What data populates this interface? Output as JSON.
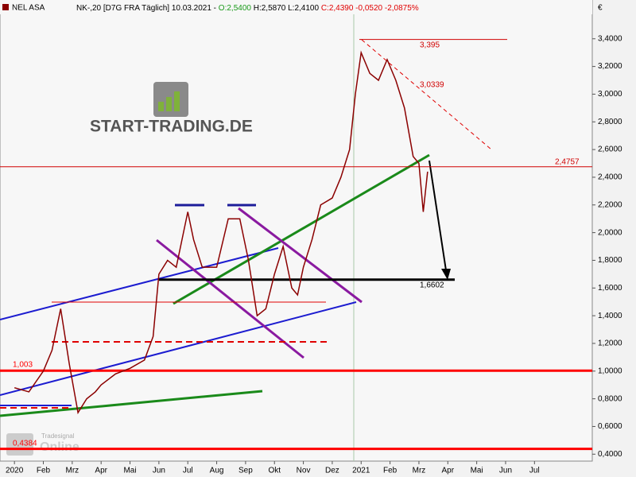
{
  "chart_data": {
    "type": "line",
    "header": {
      "symbol": "NEL ASA",
      "info": "NK-,20 [D7G FRA  Täglich] 10.03.2021 -",
      "open": "O:2,5400",
      "hl": "H:2,5870 L:2,4100",
      "close": "C:2,4390 -0,0520 -2,0875%"
    },
    "currency": "€",
    "watermark": "START-TRADING.DE",
    "watermark2": "Tradesignal",
    "watermark3": "Online",
    "x": [
      0,
      0.5,
      1.0,
      1.3,
      1.6,
      1.9,
      2.2,
      2.5,
      2.8,
      3.0,
      3.5,
      4.0,
      4.5,
      4.8,
      5.0,
      5.3,
      5.6,
      6.0,
      6.2,
      6.5,
      7.0,
      7.4,
      7.8,
      8.1,
      8.4,
      8.7,
      9.0,
      9.3,
      9.6,
      9.8,
      10.0,
      10.3,
      10.6,
      11.0,
      11.3,
      11.6,
      11.8,
      12.0,
      12.3,
      12.6,
      12.9,
      13.2,
      13.5,
      13.8,
      14.0,
      14.15,
      14.3
    ],
    "series": [
      {
        "name": "NEL ASA",
        "color": "#8b0000",
        "values": [
          0.88,
          0.85,
          1.0,
          1.15,
          1.45,
          1.05,
          0.7,
          0.8,
          0.85,
          0.9,
          0.98,
          1.02,
          1.08,
          1.25,
          1.7,
          1.8,
          1.75,
          2.15,
          1.95,
          1.75,
          1.75,
          2.1,
          2.1,
          1.8,
          1.4,
          1.45,
          1.7,
          1.9,
          1.6,
          1.55,
          1.75,
          1.95,
          2.2,
          2.25,
          2.4,
          2.6,
          3.0,
          3.3,
          3.15,
          3.1,
          3.25,
          3.1,
          2.9,
          2.55,
          2.5,
          2.15,
          2.44
        ]
      }
    ],
    "levels": {
      "values": [
        3.395,
        3.0339,
        2.4757,
        1.6602,
        1.003,
        0.4384
      ],
      "value_labels": [
        "3,395",
        "3,0339",
        "2,4757",
        "1,6602",
        "1,003",
        "0,4384"
      ],
      "colors": [
        "#d00000",
        "#d00000",
        "#d00000",
        "#000000",
        "#ff0000",
        "#ff0000"
      ]
    },
    "xlim": [
      -0.5,
      20
    ],
    "xticks": [
      {
        "value": 0,
        "label": "2020"
      },
      {
        "value": 1,
        "label": "Feb"
      },
      {
        "value": 2,
        "label": "Mrz"
      },
      {
        "value": 3,
        "label": "Apr"
      },
      {
        "value": 4,
        "label": "Mai"
      },
      {
        "value": 5,
        "label": "Jun"
      },
      {
        "value": 6,
        "label": "Jul"
      },
      {
        "value": 7,
        "label": "Aug"
      },
      {
        "value": 8,
        "label": "Sep"
      },
      {
        "value": 9,
        "label": "Okt"
      },
      {
        "value": 10,
        "label": "Nov"
      },
      {
        "value": 11,
        "label": "Dez"
      },
      {
        "value": 12,
        "label": "2021"
      },
      {
        "value": 13,
        "label": "Feb"
      },
      {
        "value": 14,
        "label": "Mrz"
      },
      {
        "value": 15,
        "label": "Apr"
      },
      {
        "value": 16,
        "label": "Mai"
      },
      {
        "value": 17,
        "label": "Jun"
      },
      {
        "value": 18,
        "label": "Jul"
      }
    ],
    "ylim": [
      0.35,
      3.68
    ],
    "yticks": [
      {
        "value": 0.4,
        "label": "0,4000"
      },
      {
        "value": 0.6,
        "label": "0,6000"
      },
      {
        "value": 0.8,
        "label": "0,8000"
      },
      {
        "value": 1.0,
        "label": "1,0000"
      },
      {
        "value": 1.2,
        "label": "1,2000"
      },
      {
        "value": 1.4,
        "label": "1,4000"
      },
      {
        "value": 1.6,
        "label": "1,6000"
      },
      {
        "value": 1.8,
        "label": "1,8000"
      },
      {
        "value": 2.0,
        "label": "2,0000"
      },
      {
        "value": 2.2,
        "label": "2,2000"
      },
      {
        "value": 2.4,
        "label": "2,4000"
      },
      {
        "value": 2.6,
        "label": "2,6000"
      },
      {
        "value": 2.8,
        "label": "2,8000"
      },
      {
        "value": 3.0,
        "label": "3,0000"
      },
      {
        "value": 3.2,
        "label": "3,2000"
      },
      {
        "value": 3.4,
        "label": "3,4000"
      }
    ]
  }
}
